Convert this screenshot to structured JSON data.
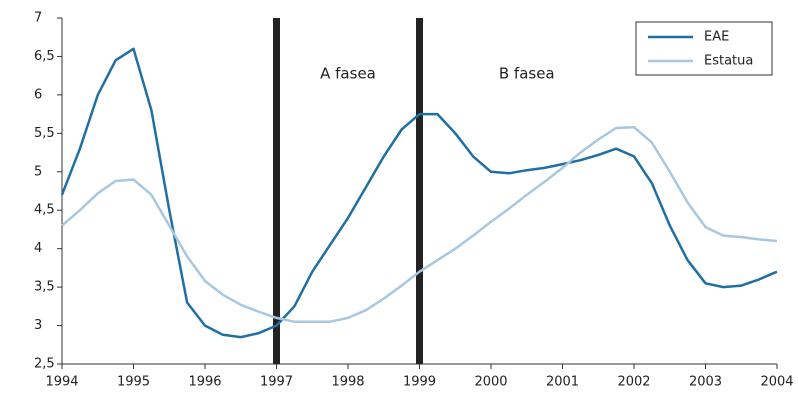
{
  "chart_data": {
    "type": "line",
    "x": [
      1994,
      1994.25,
      1994.5,
      1994.75,
      1995,
      1995.25,
      1995.5,
      1995.75,
      1996,
      1996.25,
      1996.5,
      1996.75,
      1997,
      1997.25,
      1997.5,
      1997.75,
      1998,
      1998.25,
      1998.5,
      1998.75,
      1999,
      1999.25,
      1999.5,
      1999.75,
      2000,
      2000.25,
      2000.5,
      2000.75,
      2001,
      2001.25,
      2001.5,
      2001.75,
      2002,
      2002.25,
      2002.5,
      2002.75,
      2003,
      2003.25,
      2003.5,
      2003.75,
      2004
    ],
    "series": [
      {
        "name": "EAE",
        "color": "#1f6fa3",
        "values": [
          4.7,
          5.3,
          6.0,
          6.45,
          6.6,
          5.8,
          4.5,
          3.3,
          3.0,
          2.88,
          2.85,
          2.9,
          3.0,
          3.25,
          3.7,
          4.05,
          4.4,
          4.8,
          5.2,
          5.55,
          5.75,
          5.75,
          5.5,
          5.2,
          5.0,
          4.98,
          5.02,
          5.05,
          5.1,
          5.15,
          5.22,
          5.3,
          5.2,
          4.85,
          4.3,
          3.85,
          3.55,
          3.5,
          3.52,
          3.6,
          3.7
        ]
      },
      {
        "name": "Estatua",
        "color": "#a7c8e0",
        "values": [
          4.3,
          4.5,
          4.72,
          4.88,
          4.9,
          4.7,
          4.3,
          3.9,
          3.58,
          3.4,
          3.27,
          3.18,
          3.1,
          3.05,
          3.05,
          3.05,
          3.1,
          3.2,
          3.35,
          3.52,
          3.7,
          3.85,
          4.0,
          4.17,
          4.35,
          4.52,
          4.7,
          4.87,
          5.05,
          5.25,
          5.42,
          5.57,
          5.58,
          5.38,
          5.0,
          4.6,
          4.28,
          4.17,
          4.15,
          4.12,
          4.1
        ]
      }
    ],
    "xlim": [
      1994,
      2004
    ],
    "xticks": [
      1994,
      1995,
      1996,
      1997,
      1998,
      1999,
      2000,
      2001,
      2002,
      2003,
      2004
    ],
    "ylim": [
      2.5,
      7
    ],
    "yticks": [
      {
        "value": 2.5,
        "label": "2,5"
      },
      3,
      {
        "value": 3.5,
        "label": "3,5"
      },
      4,
      {
        "value": 4.5,
        "label": "4,5"
      },
      5,
      {
        "value": 5.5,
        "label": "5,5"
      },
      6,
      {
        "value": 6.5,
        "label": "6,5"
      },
      7
    ],
    "phase_lines": [
      1997,
      1999
    ],
    "annotations": [
      {
        "text": "A fasea",
        "x": 1998
      },
      {
        "text": "B fasea",
        "x": 2000.5
      }
    ],
    "legend": "upper right"
  }
}
